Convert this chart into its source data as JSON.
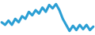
{
  "values": [
    1.8,
    1.5,
    2.0,
    1.5,
    2.2,
    1.8,
    2.5,
    2.2,
    3.0,
    2.6,
    3.2,
    2.8,
    3.5,
    3.0,
    3.8,
    3.4,
    3.9,
    3.2,
    2.2,
    1.5,
    0.8,
    1.4,
    0.9,
    1.5,
    1.0,
    1.5,
    0.9,
    1.3
  ],
  "line_color": "#2b9fd4",
  "line_width": 2.2,
  "background_color": "#ffffff"
}
